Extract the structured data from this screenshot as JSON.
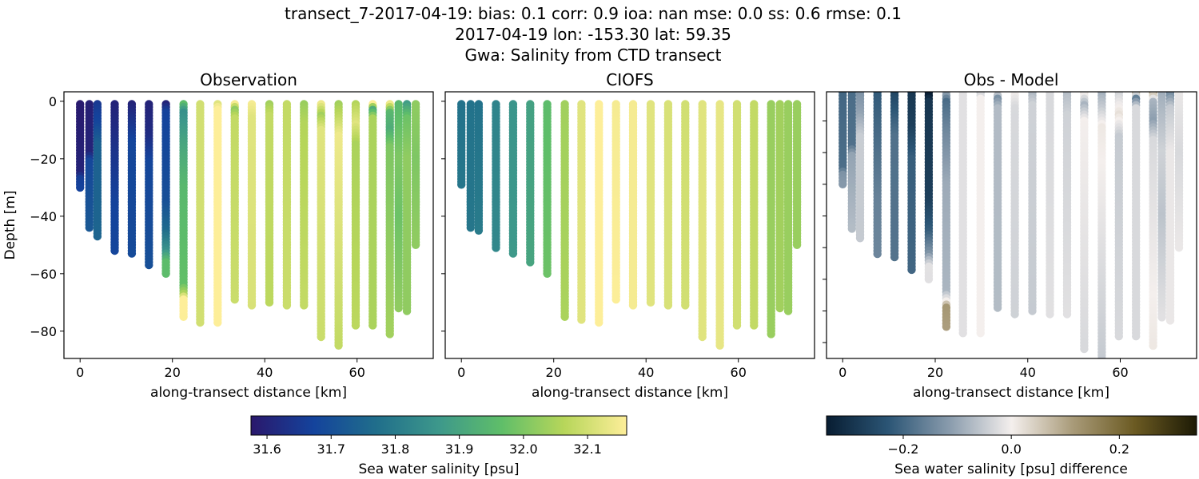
{
  "figure": {
    "title_lines": [
      "transect_7-2017-04-19: bias: 0.1  corr: 0.9  ioa: nan  mse: 0.0  ss: 0.6  rmse: 0.1",
      "2017-04-19 lon: -153.30 lat: 59.35",
      "Gwa: Salinity from CTD transect"
    ]
  },
  "chart_data": [
    {
      "type": "scatter",
      "title": "Observation",
      "xlabel": "along-transect distance [km]",
      "ylabel": "Depth [m]",
      "xlim": [
        -3.5,
        76.5
      ],
      "ylim": [
        -89.5,
        3.3
      ],
      "xticks": [
        0,
        20,
        40,
        60
      ],
      "yticks": [
        0,
        -20,
        -40,
        -60,
        -80
      ],
      "colormap": "haline",
      "casts": [
        {
          "x": 0,
          "profile": [
            [
              -1,
              31.58
            ],
            [
              -25,
              31.6
            ],
            [
              -27,
              31.66
            ],
            [
              -30,
              31.67
            ]
          ]
        },
        {
          "x": 2,
          "profile": [
            [
              -1,
              31.59
            ],
            [
              -18,
              31.6
            ],
            [
              -21,
              31.68
            ],
            [
              -44,
              31.72
            ]
          ]
        },
        {
          "x": 3.75,
          "profile": [
            [
              -1,
              31.65
            ],
            [
              -8,
              31.68
            ],
            [
              -15,
              31.74
            ],
            [
              -47,
              31.75
            ]
          ]
        },
        {
          "x": 7.5,
          "profile": [
            [
              -1,
              31.6
            ],
            [
              -20,
              31.64
            ],
            [
              -35,
              31.67
            ],
            [
              -52,
              31.68
            ]
          ]
        },
        {
          "x": 11.2,
          "profile": [
            [
              -1,
              31.6
            ],
            [
              -8,
              31.64
            ],
            [
              -15,
              31.68
            ],
            [
              -53,
              31.69
            ]
          ]
        },
        {
          "x": 14.9,
          "profile": [
            [
              -1,
              31.6
            ],
            [
              -12,
              31.62
            ],
            [
              -22,
              31.68
            ],
            [
              -57,
              31.7
            ]
          ]
        },
        {
          "x": 18.6,
          "profile": [
            [
              -1,
              31.6
            ],
            [
              -4,
              31.67
            ],
            [
              -35,
              31.7
            ],
            [
              -45,
              31.76
            ],
            [
              -52,
              31.85
            ],
            [
              -56,
              31.96
            ],
            [
              -60,
              31.96
            ]
          ]
        },
        {
          "x": 22.4,
          "profile": [
            [
              -1,
              31.96
            ],
            [
              -4,
              31.85
            ],
            [
              -15,
              31.9
            ],
            [
              -30,
              31.95
            ],
            [
              -64,
              31.97
            ],
            [
              -67,
              32.05
            ],
            [
              -69,
              32.17
            ],
            [
              -75,
              32.16
            ]
          ]
        },
        {
          "x": 26.0,
          "profile": [
            [
              -1,
              32.1
            ],
            [
              -77,
              32.1
            ]
          ]
        },
        {
          "x": 29.8,
          "profile": [
            [
              -1,
              32.12
            ],
            [
              -3,
              32.17
            ],
            [
              -77,
              32.17
            ]
          ]
        },
        {
          "x": 33.5,
          "profile": [
            [
              -1,
              32.15
            ],
            [
              -3,
              32.02
            ],
            [
              -6,
              32.08
            ],
            [
              -69,
              32.09
            ]
          ]
        },
        {
          "x": 37.2,
          "profile": [
            [
              -1,
              32.15
            ],
            [
              -6,
              32.12
            ],
            [
              -71,
              32.11
            ]
          ]
        },
        {
          "x": 41.0,
          "profile": [
            [
              -1,
              32.04
            ],
            [
              -5,
              32.08
            ],
            [
              -70,
              32.07
            ]
          ]
        },
        {
          "x": 44.8,
          "profile": [
            [
              -1,
              32.08
            ],
            [
              -71,
              32.09
            ]
          ]
        },
        {
          "x": 48.5,
          "profile": [
            [
              -1,
              32.03
            ],
            [
              -8,
              32.06
            ],
            [
              -71,
              32.08
            ]
          ]
        },
        {
          "x": 52.2,
          "profile": [
            [
              -1,
              32.14
            ],
            [
              -5,
              32.04
            ],
            [
              -10,
              32.12
            ],
            [
              -82,
              32.09
            ]
          ]
        },
        {
          "x": 56.0,
          "profile": [
            [
              -1,
              32.04
            ],
            [
              -6,
              32.08
            ],
            [
              -12,
              32.14
            ],
            [
              -85,
              32.08
            ]
          ]
        },
        {
          "x": 59.7,
          "profile": [
            [
              -1,
              32.06
            ],
            [
              -8,
              32.12
            ],
            [
              -15,
              32.05
            ],
            [
              -78,
              32.07
            ]
          ]
        },
        {
          "x": 63.4,
          "profile": [
            [
              -1,
              32.16
            ],
            [
              -3,
              31.92
            ],
            [
              -6,
              32.05
            ],
            [
              -78,
              32.05
            ]
          ]
        },
        {
          "x": 67.1,
          "profile": [
            [
              -1,
              32.14
            ],
            [
              -4,
              31.95
            ],
            [
              -10,
              31.92
            ],
            [
              -16,
              32.0
            ],
            [
              -81,
              32.04
            ]
          ]
        },
        {
          "x": 69.0,
          "profile": [
            [
              -1,
              31.95
            ],
            [
              -20,
              32.0
            ],
            [
              -40,
              31.98
            ],
            [
              -72,
              32.02
            ]
          ]
        },
        {
          "x": 70.8,
          "profile": [
            [
              -1,
              31.88
            ],
            [
              -6,
              31.98
            ],
            [
              -20,
              32.02
            ],
            [
              -73,
              32.02
            ]
          ]
        },
        {
          "x": 72.7,
          "profile": [
            [
              -1,
              32.02
            ],
            [
              -20,
              32.0
            ],
            [
              -50,
              32.02
            ]
          ]
        }
      ]
    },
    {
      "type": "scatter",
      "title": "CIOFS",
      "xlabel": "along-transect distance [km]",
      "xlim": [
        -3.5,
        76.5
      ],
      "ylim": [
        -89.5,
        3.3
      ],
      "xticks": [
        0,
        20,
        40,
        60
      ],
      "colormap": "haline",
      "casts": [
        {
          "x": 0,
          "profile": [
            [
              -1,
              31.78
            ],
            [
              -29,
              31.79
            ]
          ]
        },
        {
          "x": 2,
          "profile": [
            [
              -1,
              31.78
            ],
            [
              -44,
              31.79
            ]
          ]
        },
        {
          "x": 3.75,
          "profile": [
            [
              -1,
              31.78
            ],
            [
              -45,
              31.8
            ]
          ]
        },
        {
          "x": 7.5,
          "profile": [
            [
              -1,
              31.82
            ],
            [
              -51,
              31.83
            ]
          ]
        },
        {
          "x": 11.2,
          "profile": [
            [
              -1,
              31.86
            ],
            [
              -53,
              31.87
            ]
          ]
        },
        {
          "x": 14.9,
          "profile": [
            [
              -1,
              31.89
            ],
            [
              -56,
              31.9
            ]
          ]
        },
        {
          "x": 18.6,
          "profile": [
            [
              -1,
              31.96
            ],
            [
              -60,
              31.98
            ]
          ]
        },
        {
          "x": 22.4,
          "profile": [
            [
              -1,
              32.04
            ],
            [
              -75,
              32.05
            ]
          ]
        },
        {
          "x": 26.0,
          "profile": [
            [
              -1,
              32.12
            ],
            [
              -76,
              32.12
            ]
          ]
        },
        {
          "x": 29.8,
          "profile": [
            [
              -1,
              32.17
            ],
            [
              -77,
              32.17
            ]
          ]
        },
        {
          "x": 33.5,
          "profile": [
            [
              -1,
              32.15
            ],
            [
              -69,
              32.16
            ]
          ]
        },
        {
          "x": 37.2,
          "profile": [
            [
              -1,
              32.15
            ],
            [
              -71,
              32.15
            ]
          ]
        },
        {
          "x": 41.0,
          "profile": [
            [
              -1,
              32.12
            ],
            [
              -70,
              32.12
            ]
          ]
        },
        {
          "x": 44.8,
          "profile": [
            [
              -1,
              32.11
            ],
            [
              -71,
              32.11
            ]
          ]
        },
        {
          "x": 48.5,
          "profile": [
            [
              -1,
              32.1
            ],
            [
              -71,
              32.1
            ]
          ]
        },
        {
          "x": 52.2,
          "profile": [
            [
              -1,
              32.12
            ],
            [
              -82,
              32.12
            ]
          ]
        },
        {
          "x": 56.0,
          "profile": [
            [
              -1,
              32.13
            ],
            [
              -85,
              32.13
            ]
          ]
        },
        {
          "x": 59.7,
          "profile": [
            [
              -1,
              32.1
            ],
            [
              -78,
              32.1
            ]
          ]
        },
        {
          "x": 63.4,
          "profile": [
            [
              -1,
              32.08
            ],
            [
              -78,
              32.08
            ]
          ]
        },
        {
          "x": 67.1,
          "profile": [
            [
              -1,
              32.03
            ],
            [
              -81,
              32.03
            ]
          ]
        },
        {
          "x": 69.0,
          "profile": [
            [
              -1,
              32.04
            ],
            [
              -72,
              32.04
            ]
          ]
        },
        {
          "x": 70.8,
          "profile": [
            [
              -1,
              32.03
            ],
            [
              -73,
              32.03
            ]
          ]
        },
        {
          "x": 72.7,
          "profile": [
            [
              -1,
              32.03
            ],
            [
              -50,
              32.03
            ]
          ]
        }
      ]
    },
    {
      "type": "scatter",
      "title": "Obs - Model",
      "xlabel": "along-transect distance [km]",
      "xlim": [
        -3.5,
        76.5
      ],
      "ylim": [
        -85,
        -0.8
      ],
      "xticks": [
        0,
        20,
        40,
        60
      ],
      "colormap": "diff",
      "values": "Observation minus CIOFS"
    }
  ],
  "colorbars": [
    {
      "label": "Sea water salinity [psu]",
      "range": [
        31.575,
        32.161
      ],
      "ticks": [
        "31.6",
        "31.7",
        "31.8",
        "31.9",
        "32.0",
        "32.1"
      ],
      "tick_values": [
        31.6,
        31.7,
        31.8,
        31.9,
        32.0,
        32.1
      ],
      "colors": [
        "#2a186c",
        "#14439c",
        "#206e8b",
        "#3d988b",
        "#5fbe69",
        "#b7d65a",
        "#fdee99"
      ]
    },
    {
      "label": "Sea water salinity [psu] difference",
      "range": [
        -0.342,
        0.343
      ],
      "ticks": [
        "−0.2",
        "0.0",
        "0.2"
      ],
      "tick_values": [
        -0.2,
        0.0,
        0.2
      ],
      "colors": [
        "#081d32",
        "#2b5575",
        "#8a9cad",
        "#f4efed",
        "#a89a78",
        "#6b5a22",
        "#1c1a05"
      ]
    }
  ]
}
